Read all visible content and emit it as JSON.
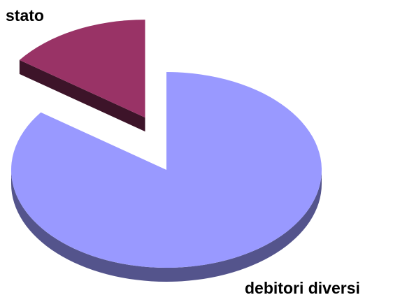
{
  "chart_data": {
    "type": "pie",
    "categories": [
      "debitori diversi",
      "stato"
    ],
    "values": [
      85,
      15
    ],
    "colors": [
      "#9999ff",
      "#993366"
    ],
    "exploded": [
      false,
      true
    ]
  }
}
